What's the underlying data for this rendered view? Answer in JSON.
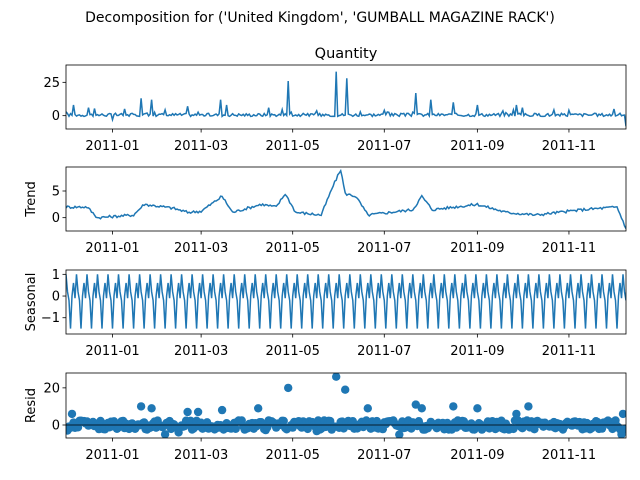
{
  "figure_title": "Decomposition for ('United Kingdom', 'GUMBALL MAGAZINE RACK')",
  "line_color": "#1f77b4",
  "x_ticks": [
    "2011-01",
    "2011-03",
    "2011-05",
    "2011-07",
    "2011-09",
    "2011-11"
  ],
  "chart_data": [
    {
      "type": "line",
      "title": "Quantity",
      "ylabel": "",
      "ylim": [
        -10,
        38
      ],
      "yticks": [
        "0",
        "25"
      ],
      "points": [
        {
          "x": "2010-12-01",
          "y": 3
        },
        {
          "x": "2010-12-06",
          "y": 8
        },
        {
          "x": "2010-12-16",
          "y": 6
        },
        {
          "x": "2011-01-01",
          "y": -3
        },
        {
          "x": "2011-01-20",
          "y": 13
        },
        {
          "x": "2011-01-27",
          "y": 12
        },
        {
          "x": "2011-02-20",
          "y": 7
        },
        {
          "x": "2011-03-14",
          "y": 12
        },
        {
          "x": "2011-03-18",
          "y": 8
        },
        {
          "x": "2011-04-15",
          "y": 6
        },
        {
          "x": "2011-04-28",
          "y": 26
        },
        {
          "x": "2011-05-30",
          "y": 33
        },
        {
          "x": "2011-06-06",
          "y": 28
        },
        {
          "x": "2011-07-01",
          "y": 4
        },
        {
          "x": "2011-07-22",
          "y": 17
        },
        {
          "x": "2011-08-01",
          "y": 12
        },
        {
          "x": "2011-08-16",
          "y": 10
        },
        {
          "x": "2011-09-01",
          "y": 8
        },
        {
          "x": "2011-09-27",
          "y": 8
        },
        {
          "x": "2011-10-01",
          "y": 6
        },
        {
          "x": "2011-11-01",
          "y": 4
        },
        {
          "x": "2011-12-01",
          "y": 5
        },
        {
          "x": "2011-12-09",
          "y": -8
        }
      ]
    },
    {
      "type": "line",
      "title": "",
      "ylabel": "Trend",
      "ylim": [
        -2.5,
        9.5
      ],
      "yticks": [
        "0",
        "5"
      ],
      "points": [
        {
          "x": "2010-12-01",
          "y": 2
        },
        {
          "x": "2010-12-15",
          "y": 2
        },
        {
          "x": "2010-12-22",
          "y": 0
        },
        {
          "x": "2011-01-15",
          "y": 0.5
        },
        {
          "x": "2011-01-22",
          "y": 2.5
        },
        {
          "x": "2011-02-10",
          "y": 1.8
        },
        {
          "x": "2011-02-20",
          "y": 1
        },
        {
          "x": "2011-03-01",
          "y": 1.2
        },
        {
          "x": "2011-03-15",
          "y": 4
        },
        {
          "x": "2011-03-22",
          "y": 1
        },
        {
          "x": "2011-04-10",
          "y": 2.5
        },
        {
          "x": "2011-04-20",
          "y": 2
        },
        {
          "x": "2011-04-26",
          "y": 4.5
        },
        {
          "x": "2011-05-03",
          "y": 1
        },
        {
          "x": "2011-05-20",
          "y": 0.5
        },
        {
          "x": "2011-05-28",
          "y": 6
        },
        {
          "x": "2011-06-02",
          "y": 9
        },
        {
          "x": "2011-06-05",
          "y": 4.5
        },
        {
          "x": "2011-06-12",
          "y": 4
        },
        {
          "x": "2011-06-20",
          "y": 0.5
        },
        {
          "x": "2011-07-20",
          "y": 1.5
        },
        {
          "x": "2011-07-26",
          "y": 4
        },
        {
          "x": "2011-08-02",
          "y": 1.5
        },
        {
          "x": "2011-09-01",
          "y": 2.5
        },
        {
          "x": "2011-09-20",
          "y": 1
        },
        {
          "x": "2011-10-10",
          "y": 0.5
        },
        {
          "x": "2011-11-10",
          "y": 1.5
        },
        {
          "x": "2011-12-03",
          "y": 2
        },
        {
          "x": "2011-12-09",
          "y": -2
        }
      ]
    },
    {
      "type": "line",
      "title": "",
      "ylabel": "Seasonal",
      "ylim": [
        -1.75,
        1.2
      ],
      "yticks": [
        "−1",
        "0",
        "1"
      ],
      "period_days": 7,
      "weekly_pattern": [
        1.0,
        0.2,
        -0.2,
        -1.5,
        0.0,
        0.6,
        -0.1
      ]
    },
    {
      "type": "scatter",
      "title": "",
      "ylabel": "Resid",
      "ylim": [
        -7,
        28
      ],
      "yticks": [
        "0",
        "20"
      ],
      "outliers": [
        {
          "x": "2010-12-05",
          "y": 6
        },
        {
          "x": "2011-01-20",
          "y": 10
        },
        {
          "x": "2011-01-27",
          "y": 9
        },
        {
          "x": "2011-02-20",
          "y": 7
        },
        {
          "x": "2011-02-27",
          "y": 7
        },
        {
          "x": "2011-03-15",
          "y": 8
        },
        {
          "x": "2011-04-08",
          "y": 9
        },
        {
          "x": "2011-04-28",
          "y": 20
        },
        {
          "x": "2011-05-30",
          "y": 26
        },
        {
          "x": "2011-06-05",
          "y": 19
        },
        {
          "x": "2011-06-20",
          "y": 9
        },
        {
          "x": "2011-07-22",
          "y": 11
        },
        {
          "x": "2011-07-26",
          "y": 9
        },
        {
          "x": "2011-08-16",
          "y": 10
        },
        {
          "x": "2011-09-01",
          "y": 9
        },
        {
          "x": "2011-09-27",
          "y": 6
        },
        {
          "x": "2011-10-05",
          "y": 10
        },
        {
          "x": "2011-12-07",
          "y": 6
        }
      ]
    }
  ]
}
